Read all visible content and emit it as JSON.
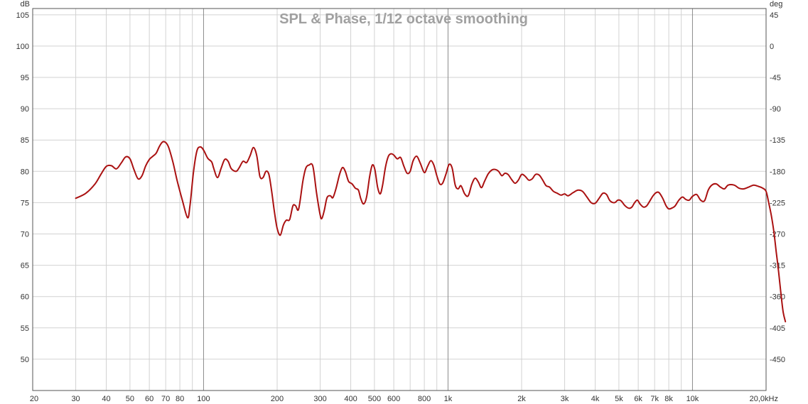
{
  "chart_data": {
    "type": "line",
    "title": "SPL & Phase, 1/12 octave smoothing",
    "x_scale": "log",
    "xlim": [
      20,
      20000
    ],
    "ylim": [
      45,
      106
    ],
    "y2lim": [
      -495,
      54
    ],
    "grid": true,
    "left_unit": "dB",
    "right_unit": "deg",
    "x_ticks": [
      {
        "v": 20,
        "label": "20"
      },
      {
        "v": 30,
        "label": "30"
      },
      {
        "v": 40,
        "label": "40"
      },
      {
        "v": 50,
        "label": "50"
      },
      {
        "v": 60,
        "label": "60"
      },
      {
        "v": 70,
        "label": "70"
      },
      {
        "v": 80,
        "label": "80"
      },
      {
        "v": 100,
        "label": "100"
      },
      {
        "v": 200,
        "label": "200"
      },
      {
        "v": 300,
        "label": "300"
      },
      {
        "v": 400,
        "label": "400"
      },
      {
        "v": 500,
        "label": "500"
      },
      {
        "v": 600,
        "label": "600"
      },
      {
        "v": 800,
        "label": "800"
      },
      {
        "v": 1000,
        "label": "1k"
      },
      {
        "v": 2000,
        "label": "2k"
      },
      {
        "v": 3000,
        "label": "3k"
      },
      {
        "v": 4000,
        "label": "4k"
      },
      {
        "v": 5000,
        "label": "5k"
      },
      {
        "v": 6000,
        "label": "6k"
      },
      {
        "v": 7000,
        "label": "7k"
      },
      {
        "v": 8000,
        "label": "8k"
      },
      {
        "v": 10000,
        "label": "10k"
      },
      {
        "v": 20000,
        "label": "20,0kHz"
      }
    ],
    "x_minor": [
      90,
      700,
      900,
      9000
    ],
    "x_major": [
      100,
      1000,
      10000
    ],
    "y_ticks": [
      {
        "v": 105,
        "label": "105"
      },
      {
        "v": 100,
        "label": "100"
      },
      {
        "v": 95,
        "label": "95"
      },
      {
        "v": 90,
        "label": "90"
      },
      {
        "v": 85,
        "label": "85"
      },
      {
        "v": 80,
        "label": "80"
      },
      {
        "v": 75,
        "label": "75"
      },
      {
        "v": 70,
        "label": "70"
      },
      {
        "v": 65,
        "label": "65"
      },
      {
        "v": 60,
        "label": "60"
      },
      {
        "v": 55,
        "label": "55"
      },
      {
        "v": 50,
        "label": "50"
      }
    ],
    "y2_ticks": [
      {
        "v": 45,
        "label": "45"
      },
      {
        "v": 0,
        "label": "0"
      },
      {
        "v": -45,
        "label": "-45"
      },
      {
        "v": -90,
        "label": "-90"
      },
      {
        "v": -135,
        "label": "-135"
      },
      {
        "v": -180,
        "label": "-180"
      },
      {
        "v": -225,
        "label": "-225"
      },
      {
        "v": -270,
        "label": "-270"
      },
      {
        "v": -315,
        "label": "-315"
      },
      {
        "v": -360,
        "label": "-360"
      },
      {
        "v": -405,
        "label": "-405"
      },
      {
        "v": -450,
        "label": "-450"
      }
    ],
    "series": [
      {
        "color": "#aa1111",
        "points": [
          [
            30,
            75.7
          ],
          [
            33,
            76.5
          ],
          [
            36,
            78
          ],
          [
            38,
            79.5
          ],
          [
            40,
            80.8
          ],
          [
            42,
            80.9
          ],
          [
            44,
            80.4
          ],
          [
            46,
            81.3
          ],
          [
            48,
            82.3
          ],
          [
            50,
            82
          ],
          [
            52,
            80.2
          ],
          [
            54,
            78.8
          ],
          [
            56,
            79.3
          ],
          [
            58,
            80.9
          ],
          [
            60,
            81.9
          ],
          [
            62,
            82.4
          ],
          [
            64,
            82.9
          ],
          [
            66,
            84
          ],
          [
            68,
            84.7
          ],
          [
            70,
            84.6
          ],
          [
            72,
            83.8
          ],
          [
            75,
            81.4
          ],
          [
            78,
            78.5
          ],
          [
            82,
            75.3
          ],
          [
            86,
            72.6
          ],
          [
            88,
            74.5
          ],
          [
            91,
            80
          ],
          [
            94,
            83.3
          ],
          [
            97,
            83.9
          ],
          [
            100,
            83.4
          ],
          [
            104,
            82.1
          ],
          [
            108,
            81.5
          ],
          [
            110,
            80.5
          ],
          [
            114,
            79
          ],
          [
            118,
            80.5
          ],
          [
            122,
            81.9
          ],
          [
            126,
            81.6
          ],
          [
            130,
            80.4
          ],
          [
            136,
            80
          ],
          [
            140,
            80.6
          ],
          [
            145,
            81.6
          ],
          [
            150,
            81.4
          ],
          [
            155,
            82.5
          ],
          [
            160,
            83.8
          ],
          [
            165,
            82.5
          ],
          [
            170,
            79.2
          ],
          [
            175,
            79
          ],
          [
            180,
            80
          ],
          [
            185,
            79.5
          ],
          [
            190,
            76.8
          ],
          [
            195,
            73.5
          ],
          [
            200,
            70.9
          ],
          [
            206,
            69.8
          ],
          [
            212,
            71.4
          ],
          [
            218,
            72.2
          ],
          [
            225,
            72.3
          ],
          [
            232,
            74.5
          ],
          [
            238,
            74.5
          ],
          [
            245,
            74
          ],
          [
            255,
            78.5
          ],
          [
            262,
            80.5
          ],
          [
            270,
            81
          ],
          [
            280,
            80.8
          ],
          [
            290,
            76.5
          ],
          [
            300,
            73
          ],
          [
            305,
            72.5
          ],
          [
            312,
            73.8
          ],
          [
            320,
            75.8
          ],
          [
            330,
            76.1
          ],
          [
            338,
            75.8
          ],
          [
            348,
            77.2
          ],
          [
            360,
            79.5
          ],
          [
            370,
            80.6
          ],
          [
            380,
            80
          ],
          [
            392,
            78.4
          ],
          [
            405,
            78
          ],
          [
            418,
            77.3
          ],
          [
            430,
            77
          ],
          [
            440,
            75.6
          ],
          [
            452,
            74.8
          ],
          [
            465,
            76
          ],
          [
            478,
            79.2
          ],
          [
            490,
            81
          ],
          [
            502,
            80.3
          ],
          [
            515,
            77.5
          ],
          [
            528,
            76.4
          ],
          [
            540,
            77.8
          ],
          [
            555,
            80.7
          ],
          [
            570,
            82.4
          ],
          [
            585,
            82.8
          ],
          [
            600,
            82.6
          ],
          [
            620,
            82
          ],
          [
            640,
            82.2
          ],
          [
            660,
            80.8
          ],
          [
            680,
            79.7
          ],
          [
            700,
            80
          ],
          [
            720,
            81.7
          ],
          [
            745,
            82.4
          ],
          [
            770,
            81.3
          ],
          [
            800,
            79.8
          ],
          [
            825,
            80.8
          ],
          [
            850,
            81.7
          ],
          [
            875,
            81
          ],
          [
            900,
            79.3
          ],
          [
            925,
            78
          ],
          [
            950,
            78.1
          ],
          [
            980,
            79.5
          ],
          [
            1010,
            81.1
          ],
          [
            1040,
            80.5
          ],
          [
            1070,
            77.8
          ],
          [
            1100,
            77.2
          ],
          [
            1130,
            77.7
          ],
          [
            1170,
            76.4
          ],
          [
            1210,
            76.1
          ],
          [
            1250,
            77.9
          ],
          [
            1290,
            78.9
          ],
          [
            1330,
            78.3
          ],
          [
            1370,
            77.4
          ],
          [
            1410,
            78.4
          ],
          [
            1460,
            79.6
          ],
          [
            1510,
            80.2
          ],
          [
            1560,
            80.3
          ],
          [
            1610,
            80
          ],
          [
            1660,
            79.3
          ],
          [
            1710,
            79.7
          ],
          [
            1760,
            79.5
          ],
          [
            1820,
            78.7
          ],
          [
            1880,
            78.1
          ],
          [
            1940,
            78.6
          ],
          [
            2000,
            79.5
          ],
          [
            2070,
            79.2
          ],
          [
            2140,
            78.6
          ],
          [
            2210,
            78.8
          ],
          [
            2280,
            79.5
          ],
          [
            2360,
            79.4
          ],
          [
            2440,
            78.6
          ],
          [
            2520,
            77.7
          ],
          [
            2600,
            77.5
          ],
          [
            2700,
            76.8
          ],
          [
            2800,
            76.5
          ],
          [
            2900,
            76.2
          ],
          [
            3000,
            76.4
          ],
          [
            3100,
            76.1
          ],
          [
            3250,
            76.6
          ],
          [
            3400,
            77
          ],
          [
            3550,
            76.8
          ],
          [
            3700,
            75.9
          ],
          [
            3850,
            75
          ],
          [
            4000,
            74.9
          ],
          [
            4150,
            75.7
          ],
          [
            4300,
            76.5
          ],
          [
            4450,
            76.3
          ],
          [
            4600,
            75.3
          ],
          [
            4800,
            75
          ],
          [
            4950,
            75.4
          ],
          [
            5100,
            75.3
          ],
          [
            5300,
            74.5
          ],
          [
            5500,
            74.1
          ],
          [
            5650,
            74.3
          ],
          [
            5800,
            75
          ],
          [
            5950,
            75.4
          ],
          [
            6100,
            74.8
          ],
          [
            6300,
            74.3
          ],
          [
            6500,
            74.5
          ],
          [
            6700,
            75.3
          ],
          [
            6900,
            76.1
          ],
          [
            7100,
            76.6
          ],
          [
            7300,
            76.6
          ],
          [
            7550,
            75.7
          ],
          [
            7800,
            74.5
          ],
          [
            8000,
            74
          ],
          [
            8300,
            74.2
          ],
          [
            8500,
            74.5
          ],
          [
            8800,
            75.4
          ],
          [
            9100,
            75.9
          ],
          [
            9400,
            75.5
          ],
          [
            9700,
            75.4
          ],
          [
            10000,
            76
          ],
          [
            10400,
            76.3
          ],
          [
            10800,
            75.4
          ],
          [
            11200,
            75.3
          ],
          [
            11600,
            77
          ],
          [
            12000,
            77.8
          ],
          [
            12500,
            78
          ],
          [
            13000,
            77.5
          ],
          [
            13500,
            77.2
          ],
          [
            14000,
            77.8
          ],
          [
            14800,
            77.8
          ],
          [
            15500,
            77.3
          ],
          [
            16200,
            77.2
          ],
          [
            17000,
            77.5
          ],
          [
            17800,
            77.8
          ],
          [
            18600,
            77.6
          ],
          [
            19400,
            77.3
          ],
          [
            20000,
            76.8
          ],
          [
            20500,
            75
          ],
          [
            21000,
            73
          ],
          [
            21500,
            70.5
          ],
          [
            22000,
            67.2
          ],
          [
            22500,
            64
          ],
          [
            23000,
            60.5
          ],
          [
            23500,
            57.5
          ],
          [
            24000,
            56
          ]
        ]
      }
    ]
  }
}
